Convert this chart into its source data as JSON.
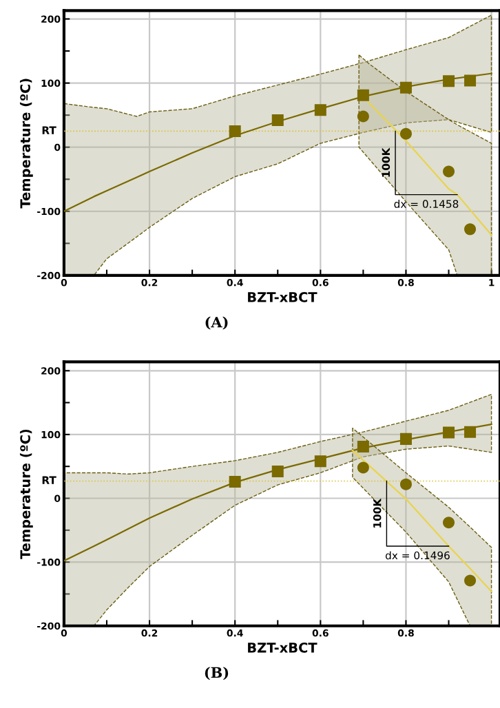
{
  "chart_data": [
    {
      "type": "scatter",
      "xlabel": "BZT-xBCT",
      "ylabel": "Temperature (ºC)",
      "xlim": [
        0,
        1.02
      ],
      "ylim": [
        -200,
        213
      ],
      "xticks": [
        0,
        {
          "value": 0.1,
          "label": null
        },
        0.2,
        {
          "value": 0.3,
          "label": null
        },
        0.4,
        {
          "value": 0.5,
          "label": null
        },
        0.6,
        {
          "value": 0.7,
          "label": null
        },
        0.8,
        {
          "value": 0.9,
          "label": null
        },
        1
      ],
      "yticks": [
        -200,
        {
          "value": -150,
          "label": null
        },
        -100,
        {
          "value": -50,
          "label": null
        },
        0,
        {
          "value": 50,
          "label": null
        },
        100,
        {
          "value": 150,
          "label": null
        },
        200
      ],
      "grid": true,
      "ref_lines": [
        {
          "axis": "y",
          "value": 25,
          "label": "RT",
          "color": "#d8c23a",
          "line_style": "dotted"
        }
      ],
      "annotations": [
        "100K",
        {
          "text": "dx = 0.1458",
          "x": 0.92,
          "y": -74
        },
        "(A)"
      ],
      "series": [
        {
          "type": "line",
          "color": "#7a6a00",
          "x": [
            0,
            0.07,
            0.1,
            0.17,
            0.2,
            0.3,
            0.4,
            0.5,
            0.6,
            0.7,
            0.8,
            0.9,
            1.0
          ],
          "values": [
            -100,
            -77,
            -68,
            -47,
            -38,
            -9,
            18,
            40,
            60,
            79,
            94,
            106,
            115
          ],
          "lower": [
            -200,
            -200,
            -174,
            -140,
            -125,
            -80,
            -46,
            -26,
            6,
            23,
            38,
            43,
            23
          ],
          "upper": [
            68,
            62,
            60,
            48,
            55,
            60,
            80,
            97,
            114,
            132,
            152,
            171,
            206
          ]
        },
        {
          "type": "line",
          "color": "#e8d44d",
          "x": [
            0.69,
            0.712,
            0.8,
            0.9,
            0.92,
            1.0
          ],
          "values": [
            null,
            70,
            10,
            -65,
            -74,
            -137
          ],
          "lower": [
            0,
            -17,
            -85,
            -160,
            -200,
            -200
          ],
          "upper": [
            144,
            131,
            87,
            43,
            35,
            6
          ]
        },
        {
          "marker": "square",
          "color": "#7a6a00",
          "x": [
            0.4,
            0.5,
            0.6,
            0.7,
            0.8,
            0.9,
            0.95
          ],
          "values": [
            25,
            42,
            58,
            81,
            93,
            103,
            104
          ]
        },
        {
          "marker": "circle",
          "color": "#7a6a00",
          "x": [
            0.7,
            0.8,
            0.9,
            0.95
          ],
          "values": [
            48,
            21,
            -38,
            -128
          ]
        }
      ]
    },
    {
      "type": "scatter",
      "xlabel": "BZT-xBCT",
      "ylabel": "Temperature (ºC)",
      "xlim": [
        0,
        1.02
      ],
      "ylim": [
        -200,
        214
      ],
      "xticks": [
        0,
        {
          "value": 0.1,
          "label": null
        },
        0.2,
        {
          "value": 0.3,
          "label": null
        },
        0.4,
        {
          "value": 0.5,
          "label": null
        },
        0.6,
        {
          "value": 0.7,
          "label": null
        },
        0.8,
        {
          "value": 0.9,
          "label": null
        }
      ],
      "yticks": [
        -200,
        {
          "value": -150,
          "label": null
        },
        -100,
        {
          "value": -50,
          "label": null
        },
        0,
        {
          "value": 50,
          "label": null
        },
        100,
        {
          "value": 150,
          "label": null
        },
        200
      ],
      "grid": true,
      "ref_lines": [
        {
          "axis": "y",
          "value": 27,
          "label": "RT",
          "color": "#d8c23a",
          "line_style": "dotted"
        }
      ],
      "annotations": [
        "100K",
        {
          "text": "dx = 0.1496",
          "x": 0.9,
          "y": -75
        },
        "(B)"
      ],
      "series": [
        {
          "type": "line",
          "color": "#7a6a00",
          "x": [
            0,
            0.07,
            0.1,
            0.15,
            0.2,
            0.3,
            0.4,
            0.5,
            0.6,
            0.7,
            0.8,
            0.9,
            1.0
          ],
          "values": [
            -98,
            -75,
            -65,
            -48,
            -31,
            -1,
            25,
            45,
            62,
            79,
            92,
            104,
            116
          ],
          "lower": [
            -200,
            -200,
            -175,
            -140,
            -107,
            -58,
            -11,
            21,
            40,
            65,
            77,
            82,
            72
          ],
          "upper": [
            40,
            40,
            40,
            38,
            40,
            50,
            59,
            72,
            89,
            104,
            121,
            138,
            163
          ]
        },
        {
          "type": "line",
          "color": "#e8d44d",
          "x": [
            0.675,
            0.8,
            0.9,
            0.95,
            1.0
          ],
          "values": [
            75,
            -1,
            -75,
            -110,
            -146
          ],
          "lower": [
            33,
            -53,
            -131,
            -200,
            -200
          ],
          "upper": [
            110,
            40,
            -14,
            -45,
            -77
          ]
        },
        {
          "marker": "square",
          "color": "#7a6a00",
          "x": [
            0.4,
            0.5,
            0.6,
            0.7,
            0.8,
            0.9,
            0.95
          ],
          "values": [
            26,
            42,
            58,
            81,
            93,
            103,
            104
          ]
        },
        {
          "marker": "circle",
          "color": "#7a6a00",
          "x": [
            0.7,
            0.8,
            0.9,
            0.95
          ],
          "values": [
            48,
            22,
            -38,
            -129
          ]
        }
      ]
    }
  ]
}
